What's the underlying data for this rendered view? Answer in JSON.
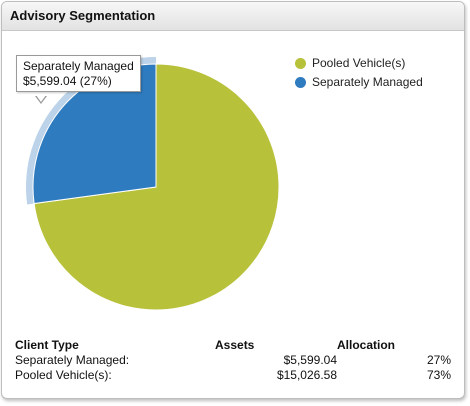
{
  "panel": {
    "title": "Advisory Segmentation"
  },
  "chart_data": {
    "type": "pie",
    "categories": [
      "Separately Managed",
      "Pooled Vehicle(s)"
    ],
    "values": [
      5599.04,
      15026.58
    ],
    "colors": [
      "#2f7bbf",
      "#b8c13a"
    ],
    "highlight_color": "#bcd3ea",
    "highlighted_slice": "Separately Managed"
  },
  "legend": [
    {
      "label": "Pooled Vehicle(s)",
      "color": "#b8c13a"
    },
    {
      "label": "Separately Managed",
      "color": "#2f7bbf"
    }
  ],
  "tooltip": {
    "line1": "Separately Managed",
    "line2": "$5,599.04 (27%)"
  },
  "table": {
    "headers": [
      "Client Type",
      "Assets",
      "Allocation"
    ],
    "rows": [
      [
        "Separately Managed:",
        "$5,599.04",
        "27%"
      ],
      [
        "Pooled Vehicle(s):",
        "$15,026.58",
        "73%"
      ]
    ]
  }
}
